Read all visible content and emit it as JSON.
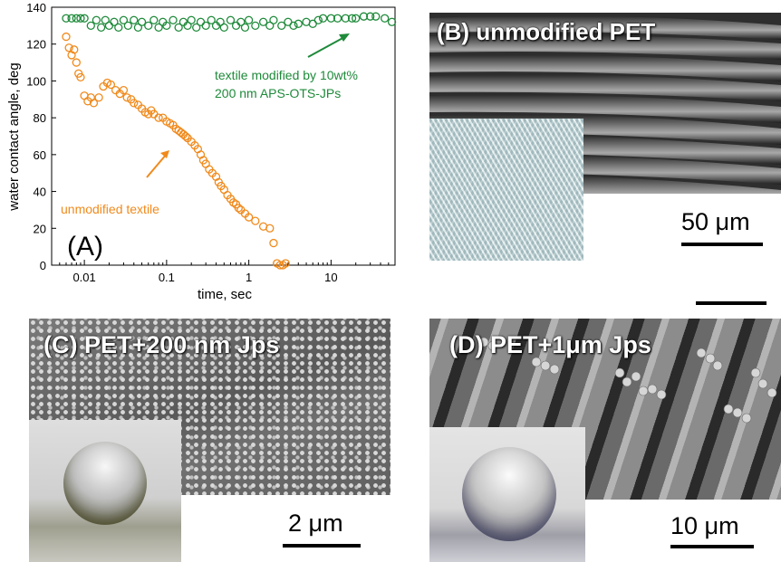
{
  "panel_a": {
    "label": "(A)",
    "annotation_modified_line1": "textile modified by 10wt%",
    "annotation_modified_line2": "200 nm  APS-OTS-JPs",
    "annotation_unmodified": "unmodified textile",
    "colors": {
      "modified": "#1e8a3a",
      "unmodified": "#f08a1c"
    }
  },
  "panel_b": {
    "label": "(B) unmodified PET",
    "scale": "50 μm"
  },
  "panel_c": {
    "label": "(C) PET+200 nm Jps",
    "scale": "2 μm"
  },
  "panel_d": {
    "label": "(D) PET+1μm Jps",
    "scale": "10 μm"
  },
  "chart_data": {
    "type": "scatter",
    "xlabel": "time, sec",
    "ylabel": "water contact angle, deg",
    "x_scale": "log",
    "xlim": [
      0.004,
      60
    ],
    "ylim": [
      0,
      140
    ],
    "x_ticks": [
      0.01,
      0.1,
      1,
      10
    ],
    "x_tick_labels": [
      "0.01",
      "0.1",
      "1",
      "10"
    ],
    "y_ticks": [
      0,
      20,
      40,
      60,
      80,
      100,
      120,
      140
    ],
    "y_tick_labels": [
      "0",
      "20",
      "40",
      "60",
      "80",
      "100",
      "120",
      "140"
    ],
    "series": [
      {
        "color": "#1e8a3a",
        "points": [
          [
            0.006,
            134
          ],
          [
            0.007,
            134
          ],
          [
            0.008,
            134
          ],
          [
            0.009,
            134
          ],
          [
            0.01,
            134
          ],
          [
            0.012,
            130
          ],
          [
            0.014,
            133
          ],
          [
            0.016,
            129
          ],
          [
            0.018,
            133
          ],
          [
            0.02,
            130
          ],
          [
            0.023,
            132
          ],
          [
            0.026,
            129
          ],
          [
            0.03,
            133
          ],
          [
            0.034,
            130
          ],
          [
            0.04,
            133
          ],
          [
            0.045,
            129
          ],
          [
            0.05,
            132
          ],
          [
            0.06,
            130
          ],
          [
            0.07,
            133
          ],
          [
            0.08,
            129
          ],
          [
            0.09,
            132
          ],
          [
            0.1,
            130
          ],
          [
            0.12,
            133
          ],
          [
            0.14,
            129
          ],
          [
            0.16,
            132
          ],
          [
            0.18,
            130
          ],
          [
            0.2,
            133
          ],
          [
            0.23,
            129
          ],
          [
            0.26,
            132
          ],
          [
            0.3,
            130
          ],
          [
            0.35,
            133
          ],
          [
            0.4,
            130
          ],
          [
            0.45,
            132
          ],
          [
            0.5,
            129
          ],
          [
            0.6,
            133
          ],
          [
            0.7,
            130
          ],
          [
            0.8,
            132
          ],
          [
            0.9,
            129
          ],
          [
            1,
            133
          ],
          [
            1.2,
            130
          ],
          [
            1.5,
            132
          ],
          [
            1.8,
            130
          ],
          [
            2,
            133
          ],
          [
            2.5,
            130
          ],
          [
            3,
            132
          ],
          [
            3.5,
            130
          ],
          [
            4,
            131
          ],
          [
            5,
            132
          ],
          [
            6,
            131
          ],
          [
            7,
            133
          ],
          [
            8,
            134
          ],
          [
            10,
            134
          ],
          [
            12,
            134
          ],
          [
            15,
            134
          ],
          [
            18,
            134
          ],
          [
            20,
            134
          ],
          [
            25,
            135
          ],
          [
            30,
            135
          ],
          [
            35,
            135
          ],
          [
            45,
            134
          ],
          [
            55,
            132
          ]
        ]
      },
      {
        "color": "#f08a1c",
        "points": [
          [
            0.006,
            124
          ],
          [
            0.0065,
            118
          ],
          [
            0.007,
            114
          ],
          [
            0.0075,
            117
          ],
          [
            0.008,
            110
          ],
          [
            0.0085,
            104
          ],
          [
            0.009,
            102
          ],
          [
            0.01,
            92
          ],
          [
            0.011,
            89
          ],
          [
            0.012,
            91
          ],
          [
            0.013,
            88
          ],
          [
            0.015,
            91
          ],
          [
            0.017,
            97
          ],
          [
            0.019,
            99
          ],
          [
            0.021,
            98
          ],
          [
            0.024,
            95
          ],
          [
            0.027,
            93
          ],
          [
            0.03,
            95
          ],
          [
            0.033,
            91
          ],
          [
            0.037,
            90
          ],
          [
            0.04,
            88
          ],
          [
            0.045,
            87
          ],
          [
            0.05,
            85
          ],
          [
            0.055,
            83
          ],
          [
            0.06,
            82
          ],
          [
            0.065,
            84
          ],
          [
            0.07,
            82
          ],
          [
            0.08,
            80
          ],
          [
            0.09,
            80
          ],
          [
            0.1,
            78
          ],
          [
            0.11,
            77
          ],
          [
            0.12,
            76
          ],
          [
            0.13,
            74
          ],
          [
            0.14,
            73
          ],
          [
            0.15,
            72
          ],
          [
            0.16,
            71
          ],
          [
            0.17,
            70
          ],
          [
            0.18,
            69
          ],
          [
            0.2,
            67
          ],
          [
            0.22,
            65
          ],
          [
            0.24,
            63
          ],
          [
            0.26,
            60
          ],
          [
            0.28,
            57
          ],
          [
            0.3,
            55
          ],
          [
            0.33,
            52
          ],
          [
            0.36,
            50
          ],
          [
            0.4,
            48
          ],
          [
            0.43,
            45
          ],
          [
            0.46,
            43
          ],
          [
            0.5,
            41
          ],
          [
            0.55,
            38
          ],
          [
            0.6,
            36
          ],
          [
            0.65,
            34
          ],
          [
            0.7,
            33
          ],
          [
            0.75,
            31
          ],
          [
            0.8,
            30
          ],
          [
            0.9,
            28
          ],
          [
            1.0,
            26
          ],
          [
            1.2,
            24
          ],
          [
            1.5,
            21
          ],
          [
            1.8,
            20
          ],
          [
            2.0,
            12
          ],
          [
            2.2,
            1
          ],
          [
            2.4,
            0
          ],
          [
            2.6,
            0
          ],
          [
            2.8,
            1
          ]
        ]
      }
    ]
  }
}
